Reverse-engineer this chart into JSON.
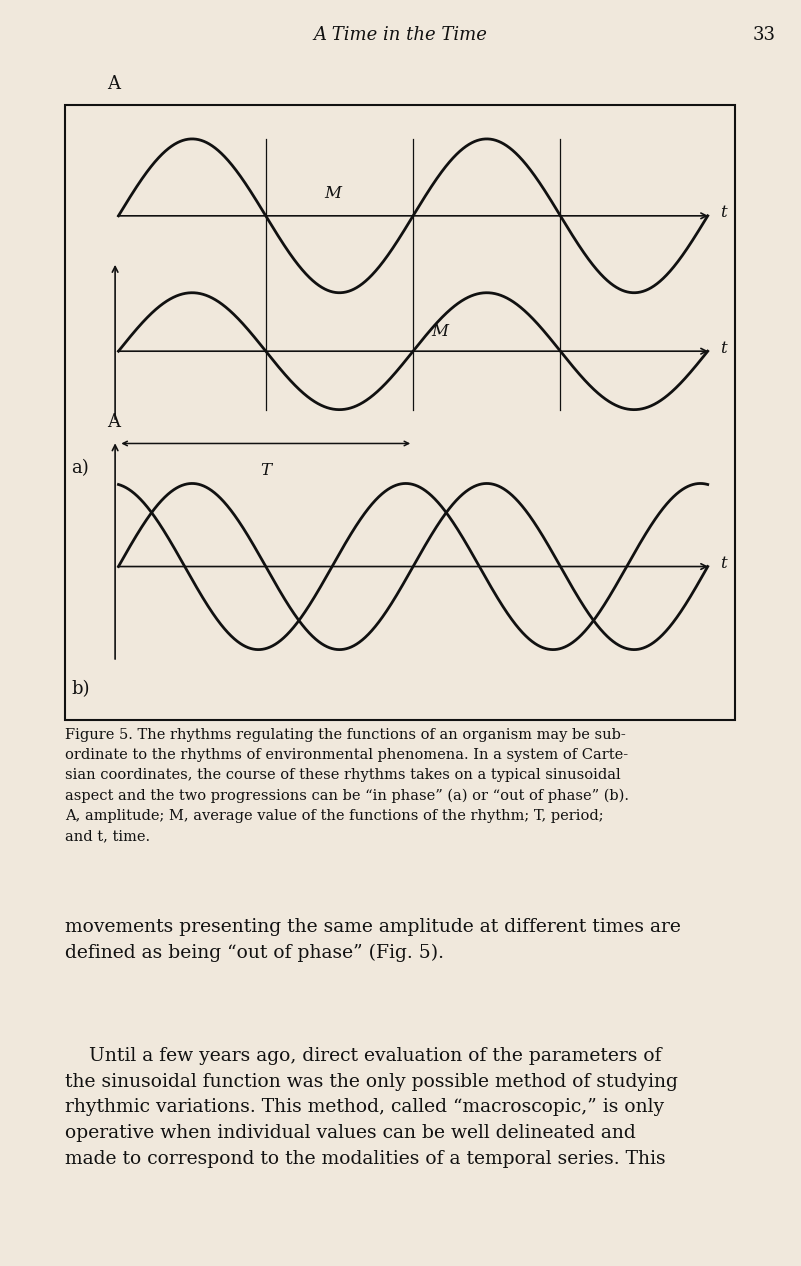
{
  "page_bg": "#f0e8dc",
  "line_color": "#111111",
  "text_color": "#111111",
  "header_title": "A Time in the Time",
  "header_page": "33",
  "fig_caption_lines": [
    "Figure 5. The rhythms regulating the functions of an organism may be sub-",
    "ordinate to the rhythms of environmental phenomena. In a system of Carte-",
    "sian coordinates, the course of these rhythms takes on a typical sinusoidal",
    "aspect and the two progressions can be “in phase” (a) or “out of phase” (b).",
    "A, amplitude; M, average value of the functions of the rhythm; T, period;",
    "and t, time."
  ],
  "para1_lines": [
    "movements presenting the same amplitude at different times are",
    "defined as being “out of phase” (Fig. 5)."
  ],
  "para2_lines": [
    "    Until a few years ago, direct evaluation of the parameters of",
    "the sinusoidal function was the only possible method of studying",
    "rhythmic variations. This method, called “macroscopic,” is only",
    "operative when individual values can be well delineated and",
    "made to correspond to the modalities of a temporal series. This"
  ],
  "wave_lw": 2.0,
  "axis_lw": 1.2,
  "font_size_header": 13,
  "font_size_caption": 10.5,
  "font_size_body_large": 13.5,
  "font_size_label": 12,
  "font_size_panel_label": 12
}
